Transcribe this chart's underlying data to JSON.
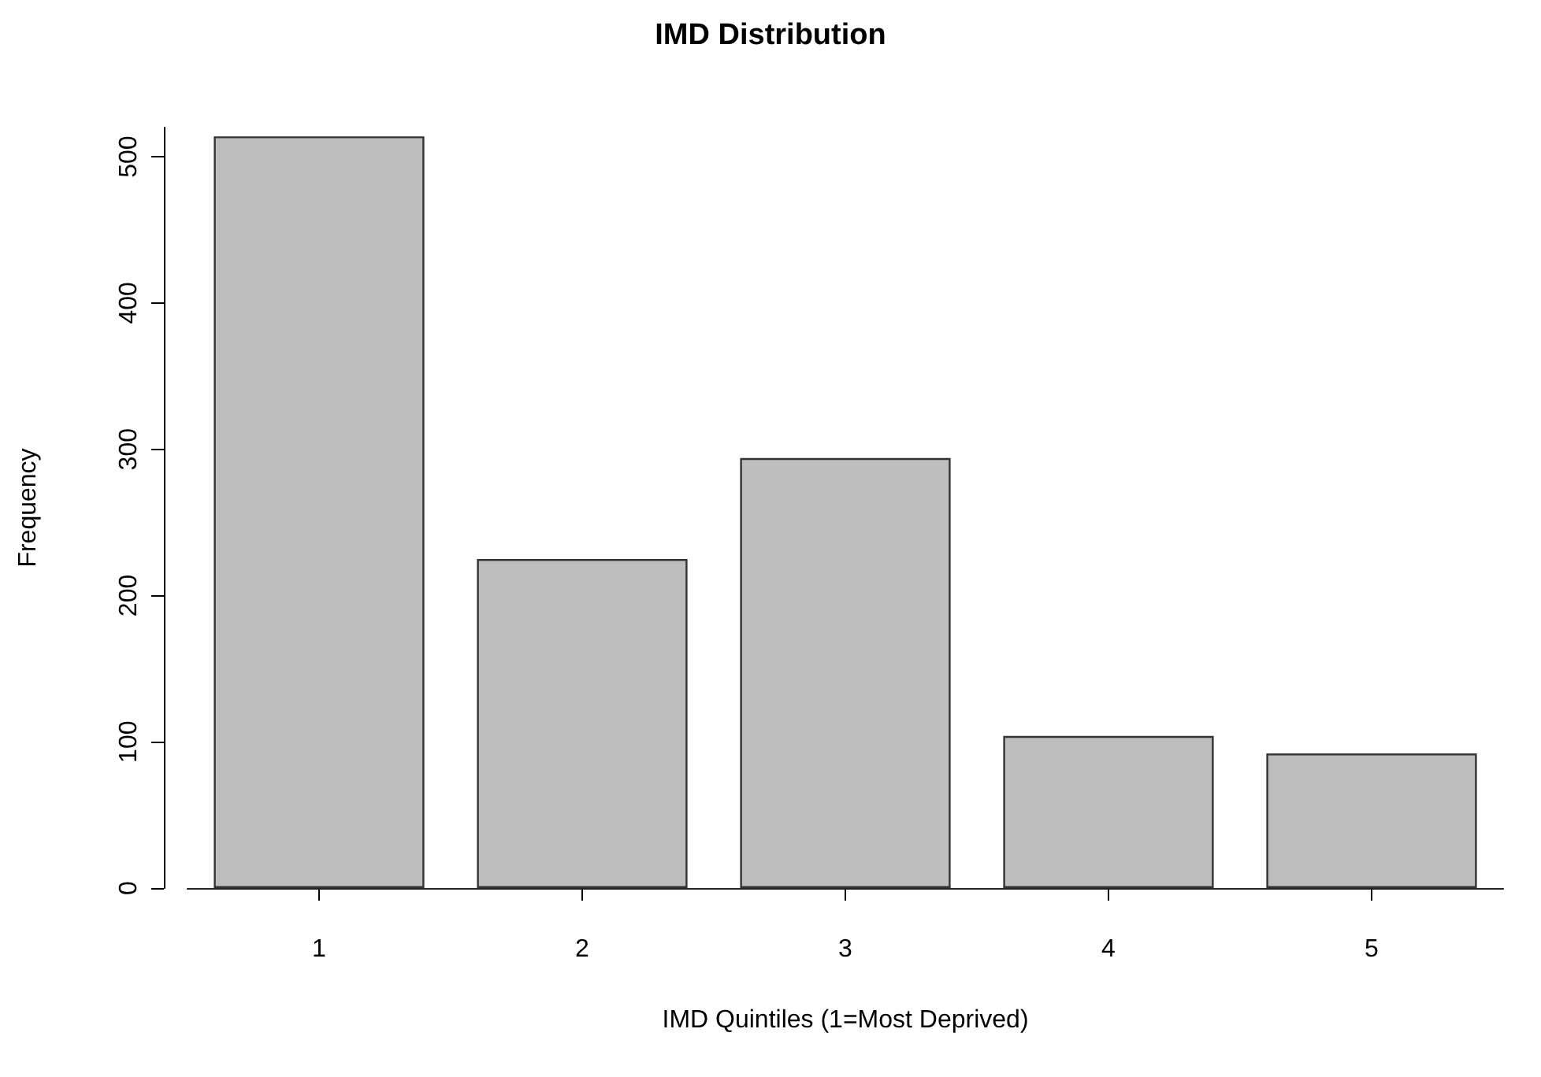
{
  "chart_data": {
    "type": "bar",
    "title": "IMD Distribution",
    "xlabel": "IMD Quintiles (1=Most Deprived)",
    "ylabel": "Frequency",
    "categories": [
      "1",
      "2",
      "3",
      "4",
      "5"
    ],
    "values": [
      514,
      225,
      294,
      104,
      92
    ],
    "color": "#bebebe",
    "ylim": [
      0,
      520
    ],
    "yticks": [
      0,
      100,
      200,
      300,
      400,
      500
    ],
    "grid": false,
    "legend": false,
    "ref_lines": [
      {
        "axis": "y",
        "value": 0,
        "color": "#222222"
      }
    ]
  }
}
